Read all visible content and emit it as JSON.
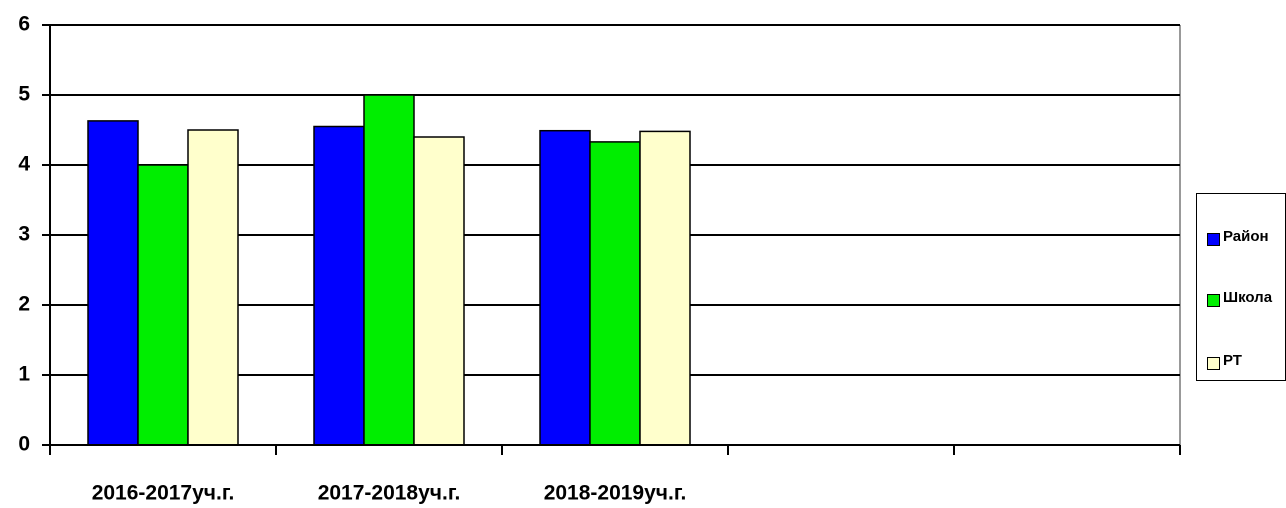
{
  "chart_data": {
    "type": "bar",
    "categories": [
      "2016-2017уч.г.",
      "2017-2018уч.г.",
      "2018-2019уч.г.",
      null,
      null
    ],
    "series": [
      {
        "name": "Район",
        "color": "#0000ff",
        "values": [
          4.63,
          4.55,
          4.49,
          null,
          null
        ]
      },
      {
        "name": "Школа",
        "color": "#00ee00",
        "values": [
          4.0,
          5.0,
          4.33,
          null,
          null
        ]
      },
      {
        "name": "РТ",
        "color": "#ffffcc",
        "values": [
          4.5,
          4.4,
          4.48,
          null,
          null
        ]
      }
    ],
    "ylim": [
      0,
      6
    ],
    "yticks": [
      0,
      1,
      2,
      3,
      4,
      5,
      6
    ],
    "grid": true,
    "legend": "right"
  }
}
